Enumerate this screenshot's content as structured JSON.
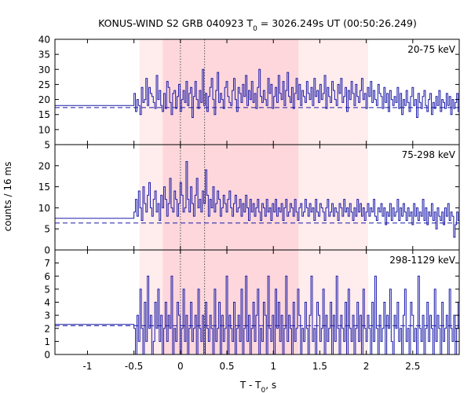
{
  "chart_data": {
    "type": "line",
    "title": {
      "prefix": "KONUS-WIND S2 GRB 040923 T",
      "sub": "0",
      "suffix": " = 3026.249s UT (00:50:26.249)"
    },
    "xlabel": {
      "prefix": "T - T",
      "sub": "0",
      "suffix": ", s"
    },
    "ylabel": "counts / 16 ms",
    "xlim": [
      -1.35,
      3.0
    ],
    "x_ticks": [
      -1,
      -0.5,
      0,
      0.5,
      1,
      1.5,
      2,
      2.5
    ],
    "x_tick_labels": [
      "-1",
      "-0.5",
      "0",
      "0.5",
      "1",
      "1.5",
      "2",
      "2.5"
    ],
    "shaded_regions": [
      {
        "x0": -0.44,
        "x1": 2.02,
        "color": "#ffecec"
      },
      {
        "x0": -0.19,
        "x1": 1.27,
        "color": "#fdd7db"
      }
    ],
    "vertical_lines": [
      0,
      0.26
    ],
    "bin_width": 0.016,
    "hist_start": -0.5,
    "pre_level_end": -0.5,
    "panels": [
      {
        "label": "20-75 keV",
        "ylim": [
          5,
          40
        ],
        "yticks": [
          5,
          10,
          15,
          20,
          25,
          30,
          35,
          40
        ],
        "background": 17.3,
        "pre_level": 18,
        "counts": [
          22,
          16,
          20,
          18,
          15,
          24,
          19,
          20,
          27,
          18,
          24,
          22,
          21,
          19,
          17,
          28,
          20,
          23,
          18,
          16,
          22,
          17,
          26,
          24,
          19,
          15,
          22,
          23,
          17,
          21,
          25,
          16,
          20,
          23,
          19,
          26,
          18,
          22,
          24,
          14,
          21,
          26,
          20,
          17,
          23,
          19,
          30,
          18,
          22,
          16,
          21,
          24,
          27,
          20,
          15,
          23,
          29,
          19,
          22,
          20,
          17,
          24,
          26,
          21,
          19,
          18,
          23,
          27,
          20,
          16,
          24,
          22,
          19,
          25,
          21,
          28,
          18,
          23,
          20,
          26,
          19,
          22,
          17,
          24,
          30,
          21,
          19,
          23,
          20,
          18,
          27,
          22,
          25,
          17,
          21,
          24,
          19,
          28,
          22,
          20,
          26,
          18,
          23,
          29,
          21,
          19,
          24,
          17,
          22,
          27,
          20,
          25,
          18,
          23,
          21,
          19,
          26,
          22,
          20,
          24,
          18,
          27,
          21,
          23,
          19,
          25,
          20,
          22,
          28,
          17,
          24,
          21,
          19,
          26,
          23,
          20,
          18,
          25,
          22,
          27,
          19,
          21,
          24,
          16,
          23,
          20,
          26,
          22,
          18,
          25,
          21,
          19,
          23,
          27,
          20,
          22,
          17,
          24,
          21,
          26,
          19,
          23,
          20,
          18,
          25,
          22,
          21,
          17,
          24,
          19,
          22,
          16,
          23,
          20,
          18,
          21,
          19,
          24,
          17,
          22,
          15,
          20,
          18,
          23,
          19,
          16,
          21,
          24,
          18,
          20,
          14,
          22,
          19,
          17,
          21,
          23,
          18,
          16,
          20,
          22,
          15,
          19,
          17,
          21,
          18,
          23,
          16,
          20,
          19,
          17,
          22,
          18,
          21,
          15,
          20,
          17,
          19,
          22,
          16,
          18,
          20,
          21,
          17,
          19,
          15,
          22,
          18,
          20,
          17,
          21,
          16,
          19,
          18,
          20,
          22,
          17,
          19,
          15,
          21,
          18,
          20,
          16,
          19,
          22,
          17,
          18,
          20,
          19,
          16,
          21,
          18,
          17,
          20,
          15,
          19
        ]
      },
      {
        "label": "75-298 keV",
        "ylim": [
          0,
          25
        ],
        "yticks": [
          0,
          5,
          10,
          15,
          20
        ],
        "background": 6.4,
        "pre_level": 7.5,
        "counts": [
          9,
          12,
          8,
          14,
          10,
          7,
          15,
          11,
          9,
          13,
          16,
          10,
          8,
          12,
          14,
          9,
          11,
          7,
          13,
          10,
          15,
          12,
          8,
          11,
          17,
          10,
          9,
          14,
          12,
          8,
          11,
          16,
          13,
          9,
          10,
          21,
          12,
          9,
          15,
          11,
          8,
          13,
          17,
          10,
          12,
          9,
          14,
          11,
          19,
          13,
          8,
          12,
          10,
          15,
          9,
          11,
          14,
          12,
          8,
          10,
          13,
          11,
          9,
          12,
          14,
          10,
          8,
          11,
          13,
          9,
          10,
          12,
          8,
          11,
          9,
          13,
          10,
          7,
          12,
          9,
          11,
          8,
          10,
          12,
          9,
          7,
          11,
          10,
          8,
          12,
          9,
          10,
          7,
          11,
          9,
          12,
          8,
          10,
          9,
          11,
          7,
          10,
          12,
          8,
          9,
          11,
          10,
          8,
          12,
          9,
          7,
          10,
          11,
          8,
          9,
          12,
          10,
          8,
          11,
          9,
          10,
          7,
          12,
          9,
          8,
          11,
          10,
          9,
          7,
          10,
          12,
          8,
          9,
          11,
          8,
          10,
          9,
          7,
          11,
          10,
          8,
          12,
          9,
          10,
          8,
          11,
          9,
          7,
          10,
          8,
          12,
          9,
          11,
          8,
          10,
          7,
          9,
          11,
          8,
          10,
          9,
          12,
          8,
          7,
          10,
          9,
          11,
          8,
          10,
          6,
          9,
          8,
          11,
          7,
          10,
          8,
          9,
          12,
          7,
          10,
          8,
          11,
          9,
          7,
          10,
          8,
          9,
          6,
          11,
          8,
          10,
          7,
          9,
          8,
          12,
          7,
          10,
          6,
          9,
          8,
          11,
          7,
          9,
          5,
          10,
          8,
          7,
          9,
          6,
          10,
          8,
          11,
          7,
          9,
          8,
          3,
          6,
          9,
          7,
          8,
          10,
          6,
          9,
          7,
          8,
          11,
          6,
          9,
          5,
          8,
          7,
          10,
          6,
          8,
          9,
          7,
          6,
          10,
          8,
          7,
          9,
          5,
          8,
          10,
          7,
          6,
          9,
          8,
          11,
          7,
          6
        ]
      },
      {
        "label": "298-1129 keV",
        "ylim": [
          0,
          8
        ],
        "yticks": [
          0,
          1,
          2,
          3,
          4,
          5,
          6,
          7
        ],
        "background": 2.2,
        "pre_level": 2.3,
        "counts": [
          2,
          0,
          3,
          1,
          5,
          2,
          0,
          4,
          1,
          6,
          2,
          3,
          0,
          1,
          4,
          2,
          5,
          1,
          3,
          0,
          2,
          4,
          1,
          3,
          2,
          6,
          0,
          2,
          1,
          4,
          3,
          0,
          2,
          5,
          1,
          3,
          0,
          2,
          4,
          1,
          2,
          3,
          0,
          5,
          2,
          1,
          3,
          0,
          4,
          2,
          1,
          3,
          2,
          0,
          5,
          1,
          2,
          4,
          0,
          3,
          1,
          2,
          6,
          0,
          3,
          2,
          1,
          4,
          0,
          2,
          3,
          1,
          5,
          0,
          2,
          6,
          1,
          3,
          0,
          2,
          4,
          1,
          3,
          5,
          0,
          2,
          1,
          4,
          3,
          0,
          6,
          2,
          1,
          3,
          0,
          5,
          2,
          4,
          1,
          3,
          0,
          2,
          6,
          1,
          3,
          2,
          0,
          4,
          1,
          2,
          5,
          3,
          0,
          2,
          1,
          4,
          2,
          0,
          3,
          6,
          1,
          2,
          0,
          4,
          3,
          1,
          2,
          5,
          0,
          3,
          1,
          2,
          4,
          0,
          3,
          1,
          6,
          2,
          0,
          3,
          2,
          1,
          4,
          0,
          5,
          2,
          1,
          3,
          0,
          2,
          4,
          1,
          3,
          0,
          5,
          2,
          1,
          3,
          2,
          0,
          4,
          1,
          6,
          2,
          0,
          3,
          1,
          2,
          4,
          0,
          3,
          2,
          5,
          1,
          0,
          3,
          2,
          4,
          1,
          2,
          0,
          3,
          5,
          1,
          2,
          0,
          4,
          3,
          1,
          2,
          0,
          6,
          2,
          1,
          3,
          0,
          2,
          4,
          1,
          3,
          2,
          0,
          5,
          1,
          3,
          2,
          0,
          4,
          1,
          2,
          3,
          0,
          5,
          2,
          1,
          3,
          0,
          2,
          4,
          1,
          3,
          0,
          2,
          5,
          1,
          2,
          0,
          3,
          4,
          1,
          2,
          0,
          3,
          2,
          1,
          4,
          0,
          3,
          2,
          1,
          5,
          0,
          2,
          3,
          1,
          2,
          0,
          4,
          2,
          1,
          3,
          0,
          2,
          1
        ]
      }
    ],
    "colors": {
      "series": "#1a1aa8",
      "vline": "#555555",
      "axis": "#000000",
      "background_line": "#1a1aa8"
    }
  }
}
